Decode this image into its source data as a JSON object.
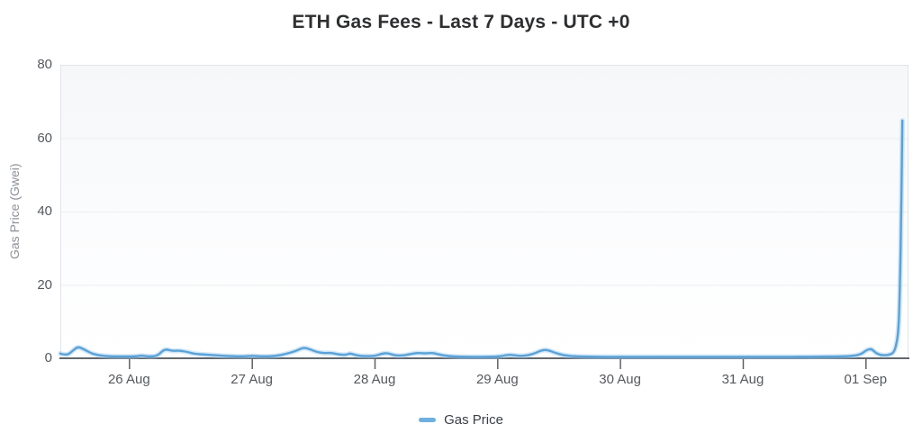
{
  "colors": {
    "line": "#5aa2d8",
    "line_halo": "rgba(160,205,238,0.45)",
    "legend_marker": "#6dafe0"
  },
  "legend": {
    "items": [
      {
        "label": "Gas Price",
        "marker": "line"
      }
    ]
  },
  "chart_data": {
    "type": "line",
    "title": "ETH Gas Fees - Last 7 Days - UTC +0",
    "xlabel": "",
    "ylabel": "Gas Price (Gwei)",
    "legend_position": "bottom",
    "grid": true,
    "y_range": [
      0,
      80
    ],
    "y_ticks": [
      0,
      20,
      40,
      60,
      80
    ],
    "x_range": [
      -0.56,
      6.35
    ],
    "x_ticks": [
      {
        "x": 0,
        "label": "26 Aug"
      },
      {
        "x": 1,
        "label": "27 Aug"
      },
      {
        "x": 2,
        "label": "28 Aug"
      },
      {
        "x": 3,
        "label": "29 Aug"
      },
      {
        "x": 4,
        "label": "30 Aug"
      },
      {
        "x": 5,
        "label": "31 Aug"
      },
      {
        "x": 6,
        "label": "01 Sep"
      }
    ],
    "x_unit": "days since 26 Aug 00:00 UTC",
    "y_unit": "Gwei",
    "series": [
      {
        "name": "Gas Price",
        "color": "#5aa2d8",
        "points": [
          [
            -0.56,
            1.3
          ],
          [
            -0.51,
            0.7
          ],
          [
            -0.46,
            2.0
          ],
          [
            -0.42,
            3.2
          ],
          [
            -0.37,
            2.5
          ],
          [
            -0.3,
            1.2
          ],
          [
            -0.23,
            0.7
          ],
          [
            -0.13,
            0.5
          ],
          [
            -0.02,
            0.5
          ],
          [
            0.05,
            0.5
          ],
          [
            0.1,
            0.8
          ],
          [
            0.16,
            0.5
          ],
          [
            0.23,
            0.6
          ],
          [
            0.29,
            2.6
          ],
          [
            0.35,
            2.0
          ],
          [
            0.4,
            2.1
          ],
          [
            0.47,
            1.8
          ],
          [
            0.53,
            1.2
          ],
          [
            0.62,
            1.0
          ],
          [
            0.71,
            0.8
          ],
          [
            0.82,
            0.6
          ],
          [
            0.92,
            0.5
          ],
          [
            1.0,
            0.7
          ],
          [
            1.09,
            0.5
          ],
          [
            1.19,
            0.6
          ],
          [
            1.28,
            1.2
          ],
          [
            1.36,
            2.0
          ],
          [
            1.42,
            3.0
          ],
          [
            1.48,
            2.4
          ],
          [
            1.53,
            1.7
          ],
          [
            1.59,
            1.4
          ],
          [
            1.65,
            1.5
          ],
          [
            1.71,
            1.0
          ],
          [
            1.77,
            0.9
          ],
          [
            1.8,
            1.4
          ],
          [
            1.86,
            0.7
          ],
          [
            1.93,
            0.6
          ],
          [
            2.0,
            0.6
          ],
          [
            2.06,
            1.3
          ],
          [
            2.11,
            1.4
          ],
          [
            2.16,
            0.8
          ],
          [
            2.22,
            0.7
          ],
          [
            2.29,
            1.1
          ],
          [
            2.35,
            1.5
          ],
          [
            2.41,
            1.3
          ],
          [
            2.47,
            1.5
          ],
          [
            2.53,
            1.0
          ],
          [
            2.6,
            0.6
          ],
          [
            2.69,
            0.45
          ],
          [
            2.8,
            0.4
          ],
          [
            2.91,
            0.4
          ],
          [
            3.02,
            0.5
          ],
          [
            3.09,
            1.0
          ],
          [
            3.14,
            0.8
          ],
          [
            3.21,
            0.6
          ],
          [
            3.29,
            1.1
          ],
          [
            3.36,
            2.2
          ],
          [
            3.41,
            2.3
          ],
          [
            3.47,
            1.5
          ],
          [
            3.54,
            0.8
          ],
          [
            3.65,
            0.5
          ],
          [
            3.76,
            0.45
          ],
          [
            3.88,
            0.4
          ],
          [
            4.01,
            0.4
          ],
          [
            4.16,
            0.4
          ],
          [
            4.31,
            0.4
          ],
          [
            4.45,
            0.4
          ],
          [
            4.6,
            0.4
          ],
          [
            4.75,
            0.4
          ],
          [
            4.89,
            0.4
          ],
          [
            5.04,
            0.4
          ],
          [
            5.19,
            0.4
          ],
          [
            5.33,
            0.4
          ],
          [
            5.48,
            0.4
          ],
          [
            5.63,
            0.45
          ],
          [
            5.77,
            0.5
          ],
          [
            5.88,
            0.6
          ],
          [
            5.96,
            1.0
          ],
          [
            6.01,
            2.3
          ],
          [
            6.05,
            2.6
          ],
          [
            6.08,
            1.5
          ],
          [
            6.12,
            0.9
          ],
          [
            6.16,
            0.8
          ],
          [
            6.2,
            1.0
          ],
          [
            6.23,
            1.6
          ],
          [
            6.25,
            3.5
          ],
          [
            6.27,
            8.0
          ],
          [
            6.28,
            20.0
          ],
          [
            6.29,
            38.0
          ],
          [
            6.295,
            52.0
          ],
          [
            6.3,
            64.8
          ]
        ]
      }
    ]
  }
}
